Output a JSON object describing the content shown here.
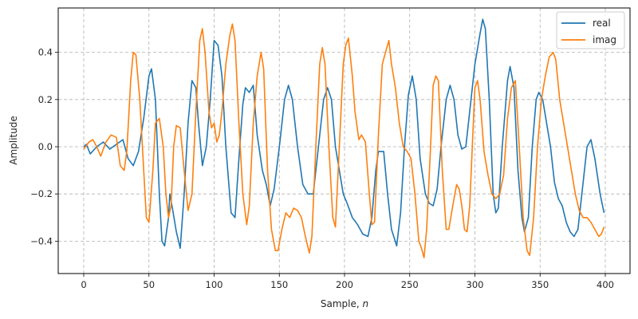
{
  "chart_data": {
    "type": "line",
    "title": "",
    "xlabel": "Sample, n",
    "ylabel": "Amplitude",
    "xlim": [
      -20,
      420
    ],
    "ylim": [
      -0.53,
      0.58
    ],
    "x_ticks": [
      0,
      50,
      100,
      150,
      200,
      250,
      300,
      350,
      400
    ],
    "y_ticks": [
      -0.4,
      -0.2,
      0.0,
      0.2,
      0.4
    ],
    "x_tick_labels": [
      "0",
      "50",
      "100",
      "150",
      "200",
      "250",
      "300",
      "350",
      "400"
    ],
    "y_tick_labels": [
      "−0.4",
      "−0.2",
      "0.0",
      "0.2",
      "0.4"
    ],
    "grid": true,
    "legend_position": "upper right",
    "series": [
      {
        "name": "real",
        "color": "#1f77b4",
        "x": [
          0,
          2,
          5,
          10,
          15,
          20,
          25,
          30,
          34,
          38,
          42,
          46,
          50,
          52,
          55,
          58,
          60,
          62,
          65,
          66,
          68,
          71,
          74,
          77,
          80,
          83,
          86,
          88,
          91,
          94,
          97,
          100,
          103,
          106,
          109,
          113,
          116,
          119,
          122,
          124,
          127,
          130,
          133,
          137,
          140,
          143,
          146,
          150,
          154,
          157,
          160,
          164,
          168,
          172,
          176,
          180,
          184,
          187,
          190,
          193,
          196,
          199,
          202,
          206,
          210,
          214,
          218,
          221,
          224,
          226,
          230,
          233,
          236,
          240,
          243,
          246,
          249,
          252,
          255,
          258,
          262,
          265,
          268,
          271,
          274,
          278,
          281,
          284,
          287,
          290,
          293,
          296,
          300,
          304,
          306,
          308,
          311,
          314,
          316,
          318,
          321,
          325,
          327,
          330,
          333,
          336,
          338,
          341,
          344,
          347,
          349,
          352,
          355,
          358,
          361,
          364,
          367,
          370,
          373,
          376,
          379,
          382,
          386,
          389,
          392,
          396,
          399
        ],
        "values": [
          0,
          0.01,
          -0.03,
          0.0,
          0.02,
          -0.01,
          0.01,
          0.03,
          -0.05,
          -0.08,
          -0.02,
          0.12,
          0.3,
          0.33,
          0.2,
          -0.2,
          -0.4,
          -0.42,
          -0.3,
          -0.2,
          -0.26,
          -0.36,
          -0.43,
          -0.2,
          0.1,
          0.28,
          0.25,
          0.1,
          -0.08,
          0.0,
          0.2,
          0.45,
          0.43,
          0.3,
          0.0,
          -0.28,
          -0.3,
          -0.05,
          0.18,
          0.25,
          0.23,
          0.26,
          0.05,
          -0.1,
          -0.16,
          -0.25,
          -0.18,
          0.0,
          0.2,
          0.26,
          0.2,
          0.0,
          -0.16,
          -0.2,
          -0.2,
          0.0,
          0.2,
          0.25,
          0.2,
          0.0,
          -0.1,
          -0.2,
          -0.24,
          -0.3,
          -0.33,
          -0.37,
          -0.38,
          -0.3,
          -0.1,
          -0.02,
          -0.02,
          -0.2,
          -0.35,
          -0.42,
          -0.28,
          0.0,
          0.22,
          0.3,
          0.2,
          -0.05,
          -0.2,
          -0.24,
          -0.25,
          -0.18,
          0.0,
          0.2,
          0.26,
          0.2,
          0.05,
          -0.01,
          0.0,
          0.15,
          0.35,
          0.48,
          0.54,
          0.5,
          0.2,
          -0.2,
          -0.28,
          -0.26,
          0.0,
          0.28,
          0.34,
          0.25,
          -0.1,
          -0.3,
          -0.36,
          -0.3,
          0.0,
          0.2,
          0.23,
          0.2,
          0.1,
          0.0,
          -0.15,
          -0.22,
          -0.25,
          -0.32,
          -0.36,
          -0.38,
          -0.35,
          -0.2,
          0.0,
          0.03,
          -0.05,
          -0.2,
          -0.28
        ]
      },
      {
        "name": "imag",
        "color": "#ff7f0e",
        "x": [
          0,
          4,
          7,
          10,
          13,
          17,
          21,
          25,
          28,
          31,
          33,
          36,
          38,
          40,
          43,
          46,
          48,
          50,
          53,
          55,
          58,
          61,
          63,
          65,
          67,
          69,
          71,
          74,
          77,
          80,
          83,
          86,
          89,
          91,
          93,
          96,
          98,
          100,
          102,
          104,
          106,
          109,
          112,
          114,
          116,
          119,
          122,
          125,
          127,
          130,
          133,
          136,
          138,
          141,
          144,
          147,
          149,
          152,
          155,
          158,
          161,
          164,
          167,
          170,
          173,
          175,
          178,
          181,
          183,
          185,
          188,
          191,
          193,
          196,
          199,
          201,
          203,
          206,
          208,
          211,
          213,
          216,
          219,
          221,
          223,
          226,
          229,
          232,
          234,
          236,
          239,
          242,
          245,
          248,
          251,
          254,
          257,
          259,
          261,
          263,
          266,
          268,
          270,
          272,
          275,
          278,
          280,
          283,
          286,
          288,
          290,
          292,
          294,
          296,
          298,
          300,
          302,
          304,
          307,
          310,
          313,
          316,
          319,
          322,
          325,
          328,
          331,
          334,
          337,
          340,
          342,
          345,
          348,
          351,
          354,
          357,
          360,
          362,
          365,
          368,
          371,
          374,
          377,
          380,
          383,
          386,
          389,
          392,
          395,
          397,
          399
        ],
        "values": [
          -0.01,
          0.02,
          0.03,
          0.0,
          -0.04,
          0.02,
          0.05,
          0.04,
          -0.08,
          -0.1,
          -0.02,
          0.28,
          0.4,
          0.39,
          0.2,
          -0.1,
          -0.3,
          -0.32,
          -0.1,
          0.1,
          0.12,
          0.0,
          -0.2,
          -0.3,
          -0.25,
          0.0,
          0.09,
          0.08,
          -0.1,
          -0.27,
          -0.2,
          0.15,
          0.45,
          0.5,
          0.4,
          0.15,
          0.08,
          0.1,
          0.02,
          0.05,
          0.15,
          0.35,
          0.47,
          0.52,
          0.45,
          0.1,
          -0.2,
          -0.33,
          -0.25,
          0.1,
          0.3,
          0.4,
          0.33,
          -0.1,
          -0.35,
          -0.44,
          -0.44,
          -0.35,
          -0.28,
          -0.3,
          -0.26,
          -0.27,
          -0.3,
          -0.38,
          -0.45,
          -0.38,
          0.0,
          0.35,
          0.42,
          0.35,
          0.0,
          -0.3,
          -0.34,
          0.0,
          0.35,
          0.43,
          0.46,
          0.3,
          0.15,
          0.03,
          0.05,
          0.02,
          -0.2,
          -0.33,
          -0.32,
          0.05,
          0.35,
          0.41,
          0.45,
          0.35,
          0.25,
          0.1,
          0.0,
          -0.02,
          -0.05,
          -0.2,
          -0.4,
          -0.43,
          -0.47,
          -0.35,
          0.0,
          0.26,
          0.3,
          0.28,
          -0.1,
          -0.35,
          -0.35,
          -0.25,
          -0.16,
          -0.18,
          -0.25,
          -0.35,
          -0.36,
          -0.25,
          0.0,
          0.25,
          0.28,
          0.2,
          -0.02,
          -0.12,
          -0.2,
          -0.22,
          -0.2,
          -0.12,
          0.12,
          0.25,
          0.28,
          0.0,
          -0.3,
          -0.44,
          -0.46,
          -0.3,
          0.0,
          0.2,
          0.3,
          0.38,
          0.4,
          0.37,
          0.2,
          0.1,
          0.0,
          -0.1,
          -0.2,
          -0.27,
          -0.3,
          -0.3,
          -0.32,
          -0.35,
          -0.38,
          -0.37,
          -0.34
        ]
      }
    ]
  },
  "legend": {
    "items": [
      {
        "label": "real",
        "color": "#1f77b4"
      },
      {
        "label": "imag",
        "color": "#ff7f0e"
      }
    ]
  },
  "axes": {
    "xlabel_prefix": "Sample, ",
    "xlabel_var": "n",
    "ylabel": "Amplitude"
  }
}
